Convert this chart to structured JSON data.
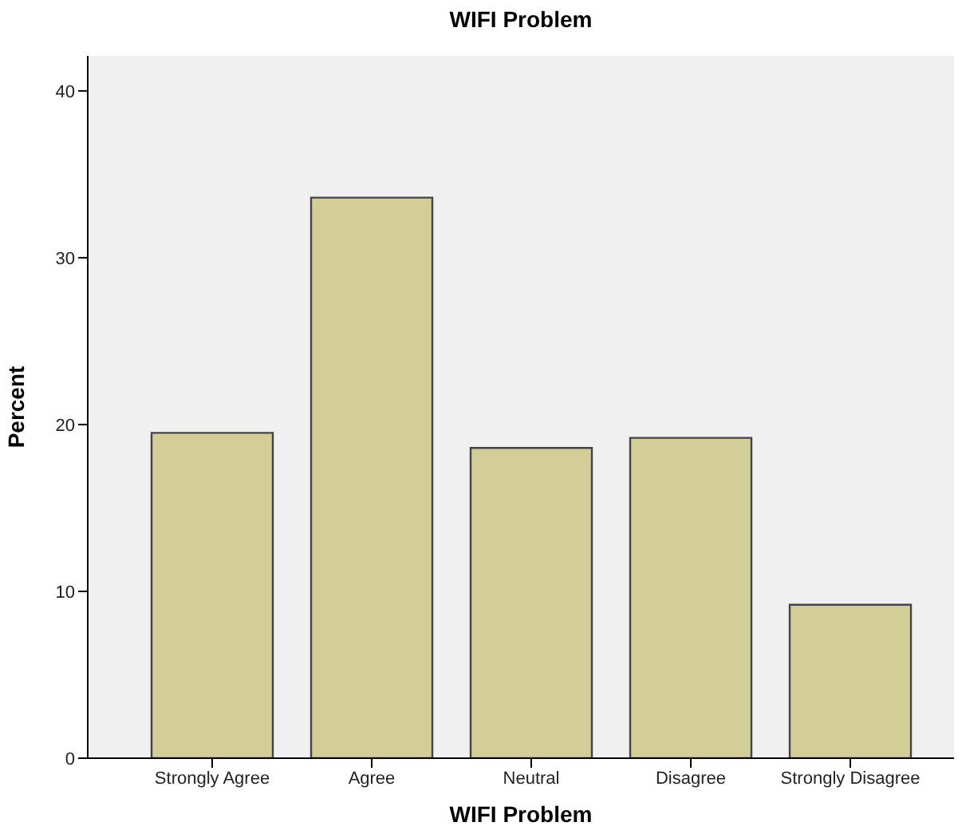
{
  "chart_data": {
    "type": "bar",
    "title": "WIFI Problem",
    "xlabel": "WIFI Problem",
    "ylabel": "Percent",
    "categories": [
      "Strongly Agree",
      "Agree",
      "Neutral",
      "Disagree",
      "Strongly Disagree"
    ],
    "values": [
      19.5,
      33.6,
      18.6,
      19.2,
      9.2
    ],
    "color": "#d3ce98",
    "ylim": [
      0,
      42.1
    ],
    "yticks": [
      0,
      10,
      20,
      30,
      40
    ],
    "grid": false,
    "legend": false
  }
}
